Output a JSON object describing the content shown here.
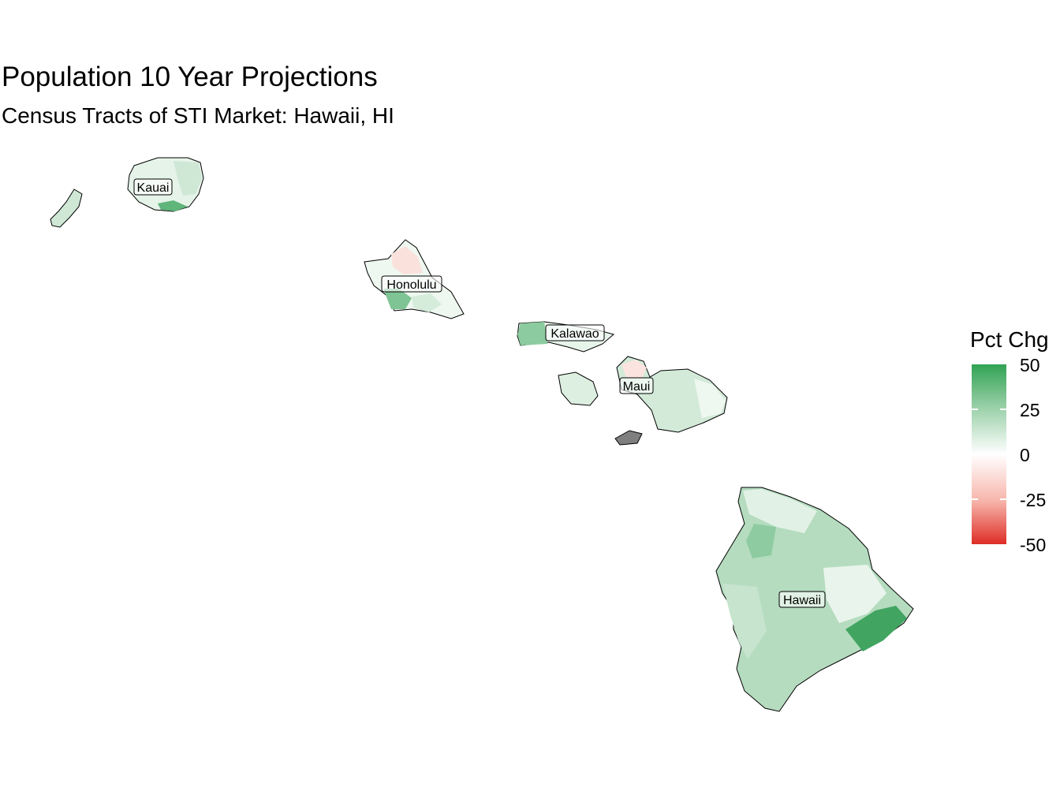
{
  "title": "Population 10 Year Projections",
  "subtitle": "Census Tracts of STI Market: Hawaii, HI",
  "legend": {
    "title": "Pct Chg",
    "ticks": [
      "50",
      "25",
      "0",
      "-25",
      "-50"
    ],
    "range": [
      -50,
      50
    ],
    "low_color": "#de2d26",
    "mid_color": "#ffffff",
    "high_color": "#31a354",
    "na_color": "#7f7f7f"
  },
  "counties": [
    {
      "name": "Kauai"
    },
    {
      "name": "Honolulu"
    },
    {
      "name": "Kalawao"
    },
    {
      "name": "Maui"
    },
    {
      "name": "Hawaii"
    }
  ]
}
